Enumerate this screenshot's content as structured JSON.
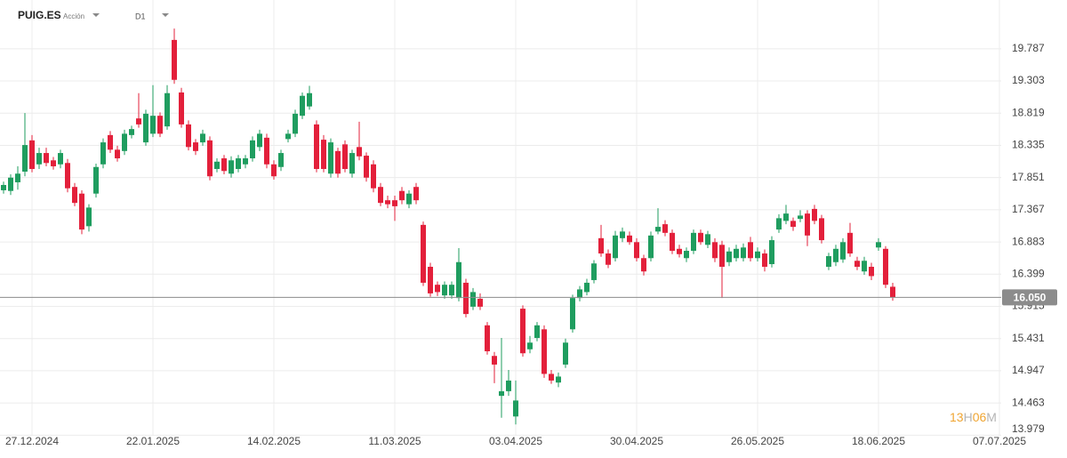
{
  "chart_data": {
    "type": "candlestick",
    "title": "PUIG.ES",
    "subtitle": "Acción",
    "timeframe": "D1",
    "countdown": [
      "13",
      "H",
      "06",
      "M"
    ],
    "up_color": "#1f9d5f",
    "down_color": "#e3203b",
    "grid": true,
    "ylim": [
      13.97,
      20.52
    ],
    "yticks": [
      19.787,
      19.303,
      18.819,
      18.335,
      17.851,
      17.367,
      16.883,
      16.399,
      15.915,
      15.431,
      14.947,
      14.463,
      13.979
    ],
    "last_price": {
      "value": 16.05,
      "label": "16.050"
    },
    "categories": [
      null,
      null,
      null,
      null,
      "27.12.2024",
      null,
      null,
      null,
      null,
      null,
      null,
      null,
      null,
      null,
      null,
      null,
      null,
      null,
      null,
      null,
      null,
      "22.01.2025",
      null,
      null,
      null,
      null,
      null,
      null,
      null,
      null,
      null,
      null,
      null,
      null,
      null,
      null,
      null,
      null,
      "14.02.2025",
      null,
      null,
      null,
      null,
      null,
      null,
      null,
      null,
      null,
      null,
      null,
      null,
      null,
      null,
      null,
      null,
      "11.03.2025",
      null,
      null,
      null,
      null,
      null,
      null,
      null,
      null,
      null,
      null,
      null,
      null,
      null,
      null,
      null,
      null,
      "03.04.2025",
      null,
      null,
      null,
      null,
      null,
      null,
      null,
      null,
      null,
      null,
      null,
      null,
      null,
      null,
      null,
      null,
      "30.04.2025",
      null,
      null,
      null,
      null,
      null,
      null,
      null,
      null,
      null,
      null,
      null,
      null,
      null,
      null,
      null,
      null,
      "26.05.2025",
      null,
      null,
      null,
      null,
      null,
      null,
      null,
      null,
      null,
      null,
      null,
      null,
      null,
      null,
      null,
      null,
      "18.06.2025",
      null,
      null,
      null,
      null,
      null,
      null,
      null,
      null,
      null,
      null,
      null,
      null,
      null,
      null,
      null,
      null,
      "07.07.2025"
    ],
    "open": [
      17.66,
      17.65,
      17.78,
      17.94,
      18.41,
      18.05,
      18.22,
      18.11,
      18.05,
      18.07,
      17.71,
      17.61,
      17.12,
      17.61,
      18.05,
      18.49,
      18.27,
      18.25,
      18.49,
      18.74,
      18.38,
      18.51,
      18.78,
      18.62,
      19.92,
      19.13,
      18.65,
      18.38,
      18.38,
      18.41,
      17.98,
      18.14,
      17.91,
      17.98,
      18.05,
      18.14,
      18.31,
      18.45,
      18.05,
      18.01,
      18.43,
      18.51,
      18.78,
      18.92,
      18.65,
      18.42,
      17.91,
      18.25,
      18.35,
      17.91,
      18.31,
      18.18,
      18.05,
      17.71,
      17.51,
      17.51,
      17.65,
      17.45,
      17.71,
      17.14,
      16.51,
      16.24,
      16.08,
      16.08,
      16.04,
      16.27,
      15.91,
      16.03,
      15.63,
      15.17,
      14.57,
      14.64,
      14.26,
      15.88,
      15.27,
      15.44,
      15.57,
      14.9,
      14.77,
      15.04,
      15.57,
      16.04,
      16.13,
      16.31,
      16.94,
      16.71,
      16.64,
      16.94,
      16.98,
      16.88,
      16.64,
      16.64,
      17.04,
      17.15,
      17.02,
      16.78,
      16.64,
      16.75,
      17.02,
      16.84,
      16.88,
      16.84,
      16.58,
      16.64,
      16.64,
      16.88,
      16.64,
      16.71,
      16.55,
      17.07,
      17.2,
      17.2,
      17.23,
      17.31,
      17.38,
      17.24,
      16.51,
      16.58,
      16.62,
      17.02,
      16.6,
      16.44,
      16.51,
      16.8,
      16.78,
      16.21,
      null,
      null,
      null,
      null,
      null,
      null,
      null,
      null,
      null,
      null,
      null,
      null,
      null,
      null,
      null
    ],
    "high": [
      17.79,
      17.9,
      18.02,
      18.82,
      18.49,
      18.3,
      18.3,
      18.16,
      18.27,
      18.13,
      17.77,
      17.66,
      17.45,
      18.06,
      18.44,
      18.55,
      18.33,
      18.57,
      18.63,
      19.12,
      18.87,
      19.24,
      18.83,
      19.24,
      20.09,
      19.2,
      18.71,
      18.43,
      18.57,
      18.47,
      18.14,
      18.19,
      18.17,
      18.19,
      18.19,
      18.47,
      18.57,
      18.51,
      18.11,
      18.27,
      18.57,
      18.87,
      19.13,
      19.23,
      18.71,
      18.49,
      18.44,
      18.3,
      18.41,
      18.27,
      18.69,
      18.23,
      18.11,
      17.77,
      17.58,
      17.58,
      17.71,
      17.66,
      17.77,
      17.19,
      16.57,
      16.29,
      16.29,
      16.29,
      16.79,
      16.33,
      16.19,
      16.11,
      15.68,
      15.23,
      15.44,
      14.96,
      14.8,
      15.93,
      15.47,
      15.68,
      15.63,
      14.96,
      14.92,
      15.43,
      16.09,
      16.22,
      16.33,
      16.61,
      17.14,
      16.77,
      17.05,
      17.1,
      17.04,
      16.94,
      16.69,
      17.04,
      17.39,
      17.21,
      17.07,
      16.84,
      16.8,
      17.07,
      17.07,
      17.05,
      16.94,
      16.9,
      16.8,
      16.84,
      16.86,
      16.96,
      16.8,
      16.77,
      16.97,
      17.3,
      17.44,
      17.25,
      17.36,
      17.36,
      17.44,
      17.29,
      16.72,
      16.84,
      16.94,
      17.17,
      16.66,
      16.66,
      16.57,
      16.94,
      16.82,
      16.27,
      null,
      null,
      null,
      null,
      null,
      null,
      null,
      null,
      null,
      null,
      null,
      null,
      null,
      null,
      null
    ],
    "low": [
      17.61,
      17.59,
      17.67,
      17.87,
      17.93,
      17.98,
      18.02,
      17.97,
      17.99,
      17.63,
      17.42,
      17.0,
      17.04,
      17.55,
      17.99,
      18.22,
      18.09,
      18.19,
      18.44,
      18.6,
      18.33,
      18.46,
      18.46,
      18.57,
      19.26,
      18.6,
      18.26,
      18.19,
      18.33,
      17.81,
      17.93,
      17.9,
      17.85,
      17.93,
      17.99,
      18.09,
      18.25,
      17.99,
      17.82,
      17.95,
      18.38,
      18.46,
      18.73,
      18.87,
      17.93,
      17.93,
      17.85,
      17.85,
      17.93,
      17.85,
      18.11,
      17.79,
      17.63,
      17.42,
      17.39,
      17.2,
      17.45,
      17.39,
      17.45,
      16.22,
      16.06,
      16.07,
      16.03,
      16.03,
      15.99,
      15.75,
      15.86,
      15.86,
      15.19,
      14.76,
      14.24,
      14.57,
      14.14,
      15.16,
      15.21,
      15.39,
      14.84,
      14.75,
      14.7,
      14.99,
      15.52,
      15.99,
      16.08,
      16.26,
      16.66,
      16.49,
      16.59,
      16.88,
      16.84,
      16.59,
      16.38,
      16.59,
      17.0,
      16.97,
      16.7,
      16.65,
      16.58,
      16.7,
      16.84,
      16.79,
      16.58,
      16.04,
      16.52,
      16.59,
      16.59,
      16.59,
      16.59,
      16.44,
      16.5,
      17.02,
      17.15,
      17.05,
      17.18,
      16.82,
      17.15,
      16.86,
      16.46,
      16.52,
      16.57,
      16.66,
      16.46,
      16.39,
      16.31,
      16.75,
      16.19,
      16.0,
      null,
      null,
      null,
      null,
      null,
      null,
      null,
      null,
      null,
      null,
      null,
      null,
      null,
      null,
      null
    ],
    "close": [
      17.74,
      17.85,
      17.91,
      18.34,
      17.98,
      18.22,
      18.07,
      18.02,
      18.22,
      17.69,
      17.47,
      17.07,
      17.4,
      18.01,
      18.38,
      18.27,
      18.14,
      18.51,
      18.58,
      18.65,
      18.81,
      18.78,
      18.51,
      19.12,
      19.32,
      18.65,
      18.31,
      18.25,
      18.51,
      17.87,
      18.09,
      17.95,
      18.11,
      18.14,
      18.14,
      18.41,
      18.51,
      18.05,
      17.87,
      18.22,
      18.51,
      18.81,
      19.08,
      19.12,
      17.98,
      17.98,
      18.38,
      17.91,
      17.98,
      18.22,
      18.17,
      17.85,
      17.69,
      17.47,
      17.45,
      17.42,
      17.51,
      17.61,
      17.51,
      16.27,
      16.11,
      16.13,
      16.24,
      16.24,
      16.58,
      15.8,
      16.13,
      15.91,
      15.24,
      15.04,
      14.64,
      14.8,
      14.5,
      15.21,
      15.37,
      15.63,
      14.9,
      14.8,
      14.86,
      15.37,
      16.04,
      16.17,
      16.27,
      16.56,
      16.71,
      16.54,
      16.98,
      17.04,
      16.88,
      16.64,
      16.44,
      16.98,
      17.11,
      17.02,
      16.75,
      16.7,
      16.75,
      17.02,
      16.88,
      17.0,
      16.64,
      16.51,
      16.74,
      16.78,
      16.8,
      16.64,
      16.74,
      16.51,
      16.91,
      17.24,
      17.31,
      17.11,
      17.28,
      16.98,
      17.2,
      16.91,
      16.67,
      16.78,
      16.88,
      16.71,
      16.51,
      16.6,
      16.37,
      16.88,
      16.24,
      16.05,
      null,
      null,
      null,
      null,
      null,
      null,
      null,
      null,
      null,
      null,
      null,
      null,
      null,
      null,
      null
    ]
  }
}
